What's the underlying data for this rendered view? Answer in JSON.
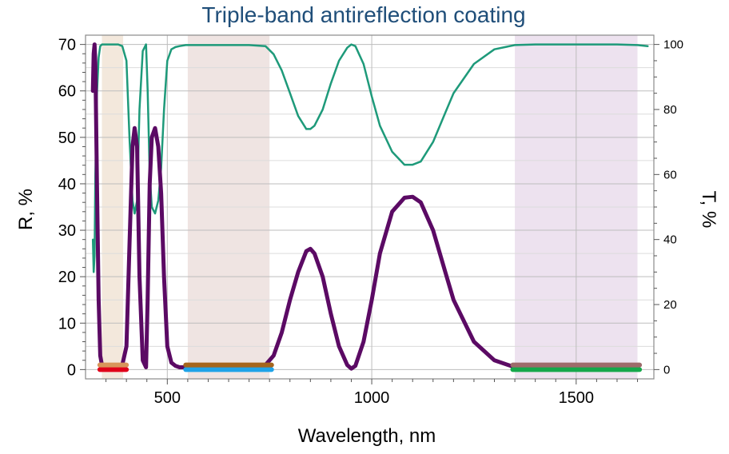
{
  "chart_data": {
    "type": "line",
    "title": "Triple-band antireflection coating",
    "xlabel": "Wavelength, nm",
    "ylabel_left": "R, %",
    "ylabel_right": "T, %",
    "xlim": [
      300,
      1690
    ],
    "ylim_left": [
      -2,
      72
    ],
    "ylim_right": [
      -2.857,
      102.857
    ],
    "x_ticks": [
      500,
      1000,
      1500
    ],
    "x_tick_labels": [
      "500",
      "1000",
      "1500"
    ],
    "y_left_ticks": [
      0,
      10,
      20,
      30,
      40,
      50,
      60,
      70
    ],
    "y_left_tick_labels": [
      "0",
      "10",
      "20",
      "30",
      "40",
      "50",
      "60",
      "70"
    ],
    "y_right_ticks": [
      0,
      20,
      40,
      60,
      80,
      100
    ],
    "y_right_tick_labels": [
      "0",
      "20",
      "40",
      "60",
      "80",
      "100"
    ],
    "grid": true,
    "bands": [
      {
        "x_start": 340,
        "x_end": 392,
        "color": "#f3e8dc"
      },
      {
        "x_start": 550,
        "x_end": 750,
        "color": "#efe4e2"
      },
      {
        "x_start": 1350,
        "x_end": 1650,
        "color": "#ede2ef"
      }
    ],
    "targets": [
      {
        "x_start": 335,
        "x_end": 400,
        "value": 0,
        "axis": "left",
        "color": "#e0001a"
      },
      {
        "x_start": 335,
        "x_end": 400,
        "value": 1,
        "axis": "left",
        "color": "#d8955a"
      },
      {
        "x_start": 545,
        "x_end": 755,
        "value": 0,
        "axis": "left",
        "color": "#1fa3e8"
      },
      {
        "x_start": 545,
        "x_end": 755,
        "value": 1,
        "axis": "left",
        "color": "#a5651c"
      },
      {
        "x_start": 1345,
        "x_end": 1655,
        "value": 0,
        "axis": "left",
        "color": "#16a84b"
      },
      {
        "x_start": 1345,
        "x_end": 1655,
        "value": 1,
        "axis": "left",
        "color": "#9e6b6b"
      }
    ],
    "series": [
      {
        "axis": "left",
        "color": "#5b0a64",
        "x": [
          318,
          320,
          322,
          324,
          328,
          332,
          336,
          340,
          350,
          360,
          370,
          380,
          390,
          400,
          408,
          415,
          420,
          426,
          432,
          440,
          448,
          452,
          457,
          462,
          470,
          478,
          485,
          492,
          500,
          510,
          520,
          530,
          545,
          560,
          600,
          650,
          700,
          740,
          760,
          780,
          800,
          820,
          840,
          850,
          860,
          880,
          900,
          920,
          940,
          950,
          960,
          980,
          1000,
          1020,
          1050,
          1080,
          1100,
          1120,
          1150,
          1180,
          1200,
          1250,
          1300,
          1350,
          1400,
          1500,
          1600,
          1650
        ],
        "y": [
          60,
          68,
          70,
          66,
          40,
          15,
          3,
          1,
          0.5,
          0.5,
          0.5,
          0.5,
          1,
          5,
          28,
          48,
          52,
          48,
          20,
          2,
          0.5,
          15,
          40,
          50,
          52,
          48,
          38,
          20,
          5,
          1.5,
          0.8,
          0.5,
          0.5,
          0.5,
          0.5,
          0.5,
          0.5,
          1,
          3,
          8,
          15,
          21,
          25.5,
          26,
          25,
          20,
          12,
          5,
          1,
          0.2,
          0.8,
          6,
          15,
          25,
          34,
          37,
          37.2,
          36,
          30,
          21,
          15,
          6,
          2,
          0.5,
          0.2,
          0.2,
          0.2,
          0.2
        ]
      },
      {
        "axis": "right",
        "color": "#1e9a7a",
        "x": [
          318,
          320,
          322,
          324,
          328,
          332,
          336,
          340,
          345,
          360,
          380,
          390,
          400,
          408,
          415,
          420,
          426,
          432,
          440,
          448,
          452,
          457,
          462,
          470,
          478,
          485,
          492,
          500,
          510,
          520,
          530,
          545,
          560,
          600,
          650,
          700,
          740,
          760,
          780,
          800,
          820,
          840,
          850,
          860,
          880,
          900,
          920,
          940,
          950,
          960,
          980,
          1000,
          1020,
          1050,
          1080,
          1100,
          1120,
          1150,
          1180,
          1200,
          1250,
          1300,
          1350,
          1400,
          1500,
          1600,
          1650,
          1675
        ],
        "y": [
          40,
          30,
          35,
          60,
          85,
          96,
          99.5,
          100,
          100,
          100,
          100,
          99.5,
          95,
          70,
          52,
          48,
          52,
          80,
          98,
          100,
          86,
          60,
          50,
          48,
          52,
          62,
          80,
          95,
          98.5,
          99.2,
          99.5,
          99.8,
          99.8,
          99.8,
          99.8,
          99.8,
          99.5,
          97,
          92,
          85,
          78,
          74,
          74,
          75,
          80,
          88,
          95,
          99,
          100,
          99.5,
          94,
          84,
          75,
          67,
          63,
          63,
          64,
          70,
          79,
          85,
          94,
          98.5,
          99.8,
          100,
          100,
          100,
          99.8,
          99.5
        ]
      }
    ]
  }
}
